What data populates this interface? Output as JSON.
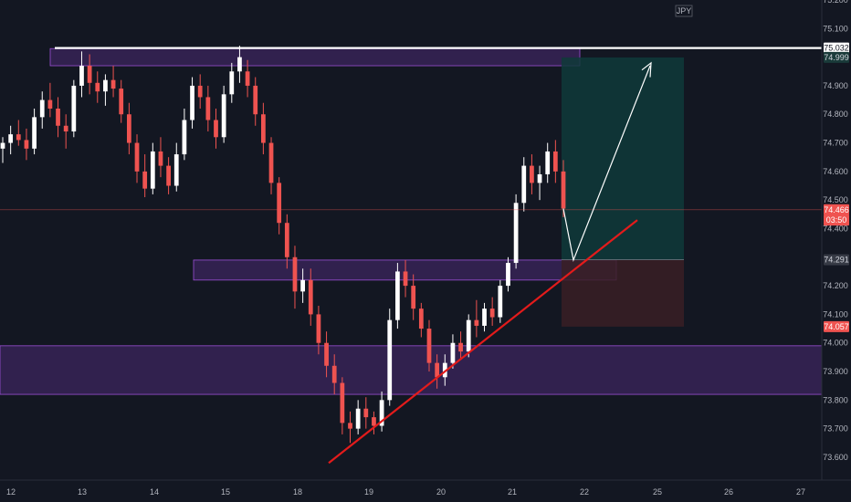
{
  "symbol_badge": "JPY",
  "chart_data": {
    "type": "candlestick",
    "title": "",
    "xlabel": "",
    "ylabel": "",
    "ylim": [
      73.52,
      75.2
    ],
    "grid": false,
    "y_ticks": [
      "75.200",
      "75.100",
      "74.900",
      "74.800",
      "74.700",
      "74.600",
      "74.500",
      "74.400",
      "74.200",
      "74.100",
      "74.000",
      "73.900",
      "73.800",
      "73.700",
      "73.600"
    ],
    "x_ticks": [
      "12",
      "13",
      "14",
      "15",
      "18",
      "19",
      "20",
      "21",
      "22",
      "25",
      "26",
      "27"
    ],
    "price_tags": [
      {
        "label": "75.032",
        "value": 75.032,
        "color": "#ffffff",
        "text_color": "#131722"
      },
      {
        "label": "74.999",
        "value": 74.999,
        "color": "#1a3b3a",
        "text_color": "#d1d4dc"
      },
      {
        "label": "74.466",
        "value": 74.466,
        "color": "#ef5350",
        "text_color": "#ffffff"
      },
      {
        "label": "03:50",
        "value": 74.43,
        "color": "#ef5350",
        "text_color": "#ffffff"
      },
      {
        "label": "74.291",
        "value": 74.291,
        "color": "#363a45",
        "text_color": "#d1d4dc"
      },
      {
        "label": "74.057",
        "value": 74.057,
        "color": "#ef5350",
        "text_color": "#ffffff"
      }
    ],
    "colors": {
      "background": "#131722",
      "bull": "#ffffff",
      "bear": "#ef5350",
      "zone_fill": "#4a2a72",
      "zone_border": "#9c4fd6",
      "profit_zone": "#0f3a3a",
      "loss_zone": "#3a1f24",
      "trendline": "#e31b1b",
      "resistance_line": "#ffffff",
      "arrow": "#ffffff",
      "axis_text": "#b2b5be"
    },
    "series": [
      {
        "name": "",
        "values": [
          [
            74.68,
            74.72,
            74.63,
            74.7
          ],
          [
            74.7,
            74.76,
            74.66,
            74.73
          ],
          [
            74.73,
            74.78,
            74.69,
            74.71
          ],
          [
            74.71,
            74.75,
            74.64,
            74.68
          ],
          [
            74.68,
            74.82,
            74.66,
            74.79
          ],
          [
            74.79,
            74.88,
            74.75,
            74.85
          ],
          [
            74.85,
            74.91,
            74.79,
            74.82
          ],
          [
            74.82,
            74.86,
            74.72,
            74.76
          ],
          [
            74.76,
            74.8,
            74.68,
            74.74
          ],
          [
            74.74,
            74.92,
            74.72,
            74.9
          ],
          [
            74.9,
            75.02,
            74.86,
            74.97
          ],
          [
            74.97,
            75.01,
            74.87,
            74.91
          ],
          [
            74.91,
            74.95,
            74.84,
            74.88
          ],
          [
            74.88,
            74.94,
            74.83,
            74.92
          ],
          [
            74.92,
            74.97,
            74.86,
            74.89
          ],
          [
            74.89,
            74.92,
            74.77,
            74.8
          ],
          [
            74.8,
            74.84,
            74.66,
            74.7
          ],
          [
            74.7,
            74.73,
            74.56,
            74.6
          ],
          [
            74.6,
            74.66,
            74.51,
            74.54
          ],
          [
            74.54,
            74.7,
            74.52,
            74.67
          ],
          [
            74.67,
            74.72,
            74.58,
            74.62
          ],
          [
            74.62,
            74.65,
            74.52,
            74.55
          ],
          [
            74.55,
            74.7,
            74.53,
            74.66
          ],
          [
            74.66,
            74.82,
            74.64,
            74.78
          ],
          [
            74.78,
            74.93,
            74.75,
            74.9
          ],
          [
            74.9,
            74.94,
            74.82,
            74.86
          ],
          [
            74.86,
            74.9,
            74.74,
            74.78
          ],
          [
            74.78,
            74.82,
            74.68,
            74.72
          ],
          [
            74.72,
            74.9,
            74.7,
            74.87
          ],
          [
            74.87,
            74.98,
            74.84,
            74.95
          ],
          [
            74.95,
            75.04,
            74.91,
            75.0
          ],
          [
            74.95,
            74.99,
            74.86,
            74.9
          ],
          [
            74.9,
            74.93,
            74.76,
            74.8
          ],
          [
            74.8,
            74.84,
            74.66,
            74.7
          ],
          [
            74.7,
            74.72,
            74.52,
            74.56
          ],
          [
            74.56,
            74.58,
            74.38,
            74.42
          ],
          [
            74.42,
            74.45,
            74.26,
            74.3
          ],
          [
            74.3,
            74.34,
            74.12,
            74.18
          ],
          [
            74.18,
            74.26,
            74.14,
            74.22
          ],
          [
            74.22,
            74.26,
            74.06,
            74.1
          ],
          [
            74.1,
            74.13,
            73.96,
            74.0
          ],
          [
            74.0,
            74.04,
            73.88,
            73.92
          ],
          [
            73.92,
            73.96,
            73.82,
            73.86
          ],
          [
            73.86,
            73.88,
            73.68,
            73.72
          ],
          [
            73.72,
            73.76,
            73.65,
            73.7
          ],
          [
            73.7,
            73.8,
            73.68,
            73.77
          ],
          [
            73.77,
            73.81,
            73.7,
            73.74
          ],
          [
            73.74,
            73.76,
            73.68,
            73.71
          ],
          [
            73.71,
            73.83,
            73.69,
            73.8
          ],
          [
            73.8,
            74.12,
            73.78,
            74.08
          ],
          [
            74.08,
            74.28,
            74.05,
            74.25
          ],
          [
            74.25,
            74.29,
            74.16,
            74.2
          ],
          [
            74.2,
            74.24,
            74.08,
            74.12
          ],
          [
            74.12,
            74.14,
            74.02,
            74.05
          ],
          [
            74.05,
            74.08,
            73.9,
            73.93
          ],
          [
            73.93,
            73.96,
            73.84,
            73.88
          ],
          [
            73.88,
            73.96,
            73.85,
            73.93
          ],
          [
            73.93,
            74.03,
            73.91,
            74.0
          ],
          [
            74.0,
            74.04,
            73.94,
            73.97
          ],
          [
            73.97,
            74.1,
            73.95,
            74.08
          ],
          [
            74.08,
            74.15,
            74.02,
            74.06
          ],
          [
            74.06,
            74.14,
            74.04,
            74.12
          ],
          [
            74.12,
            74.16,
            74.06,
            74.09
          ],
          [
            74.09,
            74.22,
            74.07,
            74.2
          ],
          [
            74.2,
            74.3,
            74.18,
            74.28
          ],
          [
            74.28,
            74.52,
            74.26,
            74.49
          ],
          [
            74.49,
            74.65,
            74.46,
            74.62
          ],
          [
            74.62,
            74.66,
            74.52,
            74.56
          ],
          [
            74.56,
            74.62,
            74.5,
            74.59
          ],
          [
            74.59,
            74.7,
            74.56,
            74.67
          ],
          [
            74.67,
            74.71,
            74.56,
            74.6
          ],
          [
            74.6,
            74.64,
            74.44,
            74.47
          ]
        ]
      }
    ],
    "zones": [
      {
        "from": 74.97,
        "to": 75.03,
        "extent": "left-top"
      },
      {
        "from": 74.22,
        "to": 74.29,
        "extent": "middle"
      },
      {
        "from": 73.82,
        "to": 73.99,
        "extent": "full"
      }
    ],
    "trade": {
      "entry": 74.291,
      "target": 74.999,
      "stop": 74.057
    },
    "resistance": 75.032,
    "trendline": {
      "from": [
        0.44,
        73.58
      ],
      "to": [
        0.78,
        74.43
      ]
    }
  }
}
